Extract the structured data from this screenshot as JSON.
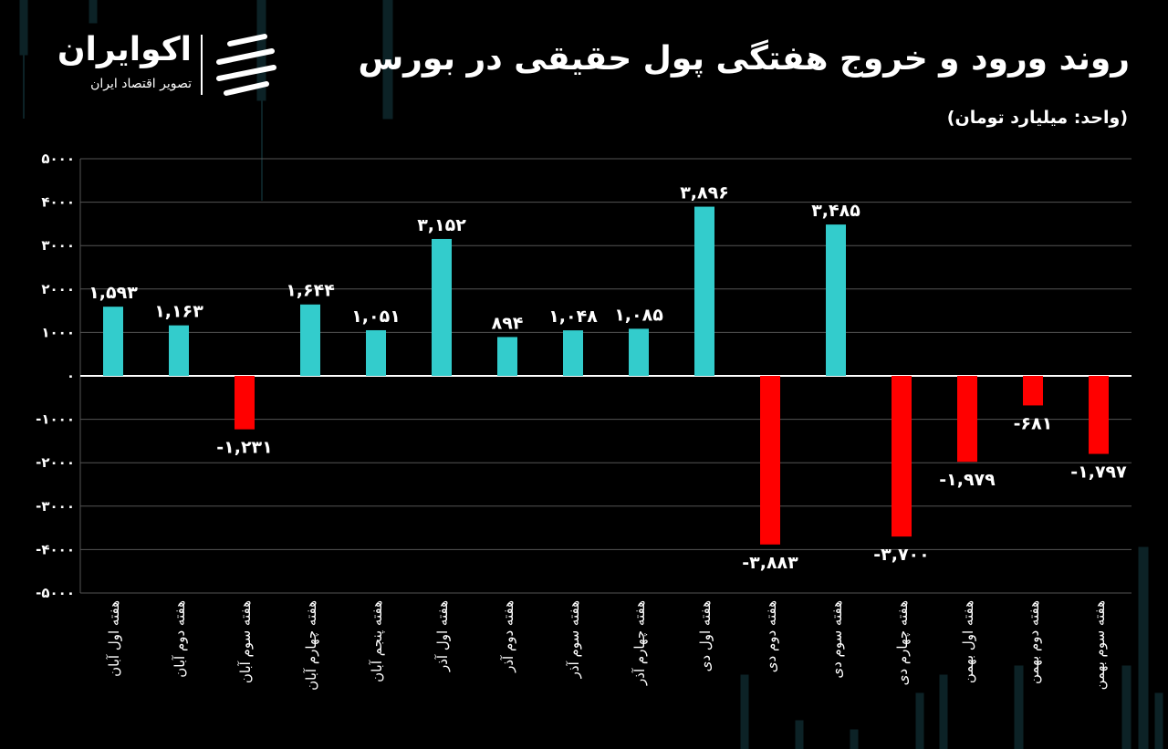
{
  "header": {
    "title": "روند ورود و خروج هفتگی پول حقیقی در بورس",
    "subtitle": "(واحد: میلیارد تومان)"
  },
  "brand": {
    "name": "اکوایران",
    "tagline": "تصویر اقتصاد ایران",
    "logo_icon": "ecoiran-logo-icon"
  },
  "colors": {
    "positive": "#33CCCC",
    "negative": "#FF0000",
    "background": "#000000",
    "grid": "#555555",
    "text": "#FFFFFF"
  },
  "chart_data": {
    "type": "bar",
    "title": "روند ورود و خروج هفتگی پول حقیقی در بورس",
    "ylabel": "(واحد: میلیارد تومان)",
    "xlabel": "",
    "ylim": [
      -5000,
      5000
    ],
    "yticks": [
      5000,
      4000,
      3000,
      2000,
      1000,
      0,
      -1000,
      -2000,
      -3000,
      -4000,
      -5000
    ],
    "ytick_labels": [
      "۵۰۰۰",
      "۴۰۰۰",
      "۳۰۰۰",
      "۲۰۰۰",
      "۱۰۰۰",
      "۰",
      "-۱۰۰۰",
      "-۲۰۰۰",
      "-۳۰۰۰",
      "-۴۰۰۰",
      "-۵۰۰۰"
    ],
    "grid": true,
    "categories": [
      "هفته اول آبان",
      "هفته دوم آبان",
      "هفته سوم آبان",
      "هفته چهارم آبان",
      "هفته پنجم آبان",
      "هفته اول آذر",
      "هفته دوم آذر",
      "هفته سوم آذر",
      "هفته چهارم آذر",
      "هفته اول دی",
      "هفته دوم دی",
      "هفته سوم دی",
      "هفته چهارم دی",
      "هفته اول بهمن",
      "هفته دوم بهمن",
      "هفته سوم بهمن"
    ],
    "values": [
      1593,
      1163,
      -1231,
      1644,
      1051,
      3152,
      894,
      1048,
      1085,
      3896,
      -3883,
      3485,
      -3700,
      -1979,
      -681,
      -1797
    ],
    "value_labels": [
      "۱,۵۹۳",
      "۱,۱۶۳",
      "-۱,۲۳۱",
      "۱,۶۴۴",
      "۱,۰۵۱",
      "۳,۱۵۲",
      "۸۹۴",
      "۱,۰۴۸",
      "۱,۰۸۵",
      "۳,۸۹۶",
      "-۳,۸۸۳",
      "۳,۴۸۵",
      "-۳,۷۰۰",
      "-۱,۹۷۹",
      "-۶۸۱",
      "-۱,۷۹۷"
    ]
  }
}
